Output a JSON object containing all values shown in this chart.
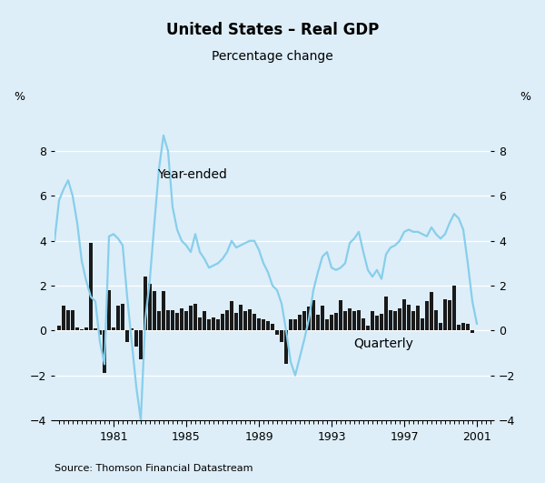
{
  "title": "United States – Real GDP",
  "subtitle": "Percentage change",
  "source": "Source: Thomson Financial Datastream",
  "ylabel_left": "%",
  "ylabel_right": "%",
  "xlabel_quarterly": "Quarterly",
  "xlabel_yearended": "Year-ended",
  "background_color": "#ddeef8",
  "bar_color": "#1a1a1a",
  "line_color": "#87CEEB",
  "ylim": [
    -4,
    10
  ],
  "yticks": [
    -4,
    -2,
    0,
    2,
    4,
    6,
    8
  ],
  "xlim_start": 1977.75,
  "xlim_end": 2001.75,
  "xtick_years": [
    1981,
    1985,
    1989,
    1993,
    1997,
    2001
  ],
  "quarterly_data": [
    [
      1978.0,
      0.2
    ],
    [
      1978.25,
      1.1
    ],
    [
      1978.5,
      0.9
    ],
    [
      1978.75,
      0.9
    ],
    [
      1979.0,
      0.15
    ],
    [
      1979.25,
      0.05
    ],
    [
      1979.5,
      0.15
    ],
    [
      1979.75,
      3.9
    ],
    [
      1980.0,
      0.1
    ],
    [
      1980.25,
      -0.2
    ],
    [
      1980.5,
      -1.9
    ],
    [
      1980.75,
      1.8
    ],
    [
      1981.0,
      0.15
    ],
    [
      1981.25,
      1.1
    ],
    [
      1981.5,
      1.2
    ],
    [
      1981.75,
      -0.5
    ],
    [
      1982.0,
      0.1
    ],
    [
      1982.25,
      -0.7
    ],
    [
      1982.5,
      -1.3
    ],
    [
      1982.75,
      2.4
    ],
    [
      1983.0,
      2.1
    ],
    [
      1983.25,
      1.75
    ],
    [
      1983.5,
      0.85
    ],
    [
      1983.75,
      1.75
    ],
    [
      1984.0,
      0.9
    ],
    [
      1984.25,
      0.9
    ],
    [
      1984.5,
      0.8
    ],
    [
      1984.75,
      1.0
    ],
    [
      1985.0,
      0.85
    ],
    [
      1985.25,
      1.1
    ],
    [
      1985.5,
      1.2
    ],
    [
      1985.75,
      0.6
    ],
    [
      1986.0,
      0.85
    ],
    [
      1986.25,
      0.5
    ],
    [
      1986.5,
      0.6
    ],
    [
      1986.75,
      0.5
    ],
    [
      1987.0,
      0.75
    ],
    [
      1987.25,
      0.9
    ],
    [
      1987.5,
      1.3
    ],
    [
      1987.75,
      0.8
    ],
    [
      1988.0,
      1.15
    ],
    [
      1988.25,
      0.85
    ],
    [
      1988.5,
      0.95
    ],
    [
      1988.75,
      0.75
    ],
    [
      1989.0,
      0.55
    ],
    [
      1989.25,
      0.5
    ],
    [
      1989.5,
      0.4
    ],
    [
      1989.75,
      0.3
    ],
    [
      1990.0,
      -0.2
    ],
    [
      1990.25,
      -0.5
    ],
    [
      1990.5,
      -1.5
    ],
    [
      1990.75,
      0.5
    ],
    [
      1991.0,
      0.5
    ],
    [
      1991.25,
      0.7
    ],
    [
      1991.5,
      0.85
    ],
    [
      1991.75,
      1.05
    ],
    [
      1992.0,
      1.35
    ],
    [
      1992.25,
      0.7
    ],
    [
      1992.5,
      1.1
    ],
    [
      1992.75,
      0.5
    ],
    [
      1993.0,
      0.7
    ],
    [
      1993.25,
      0.8
    ],
    [
      1993.5,
      1.35
    ],
    [
      1993.75,
      0.85
    ],
    [
      1994.0,
      1.0
    ],
    [
      1994.25,
      0.85
    ],
    [
      1994.5,
      0.9
    ],
    [
      1994.75,
      0.55
    ],
    [
      1995.0,
      0.2
    ],
    [
      1995.25,
      0.85
    ],
    [
      1995.5,
      0.65
    ],
    [
      1995.75,
      0.75
    ],
    [
      1996.0,
      1.5
    ],
    [
      1996.25,
      0.9
    ],
    [
      1996.5,
      0.85
    ],
    [
      1996.75,
      1.0
    ],
    [
      1997.0,
      1.4
    ],
    [
      1997.25,
      1.15
    ],
    [
      1997.5,
      0.85
    ],
    [
      1997.75,
      1.1
    ],
    [
      1998.0,
      0.55
    ],
    [
      1998.25,
      1.3
    ],
    [
      1998.5,
      1.7
    ],
    [
      1998.75,
      0.9
    ],
    [
      1999.0,
      0.35
    ],
    [
      1999.25,
      1.4
    ],
    [
      1999.5,
      1.35
    ],
    [
      1999.75,
      2.0
    ],
    [
      2000.0,
      0.25
    ],
    [
      2000.25,
      0.35
    ],
    [
      2000.5,
      0.3
    ],
    [
      2000.75,
      -0.1
    ]
  ],
  "yearended_data": [
    [
      1977.75,
      4.0
    ],
    [
      1978.0,
      5.8
    ],
    [
      1978.25,
      6.3
    ],
    [
      1978.5,
      6.7
    ],
    [
      1978.75,
      6.0
    ],
    [
      1979.0,
      4.8
    ],
    [
      1979.25,
      3.1
    ],
    [
      1979.5,
      2.2
    ],
    [
      1979.75,
      1.5
    ],
    [
      1980.0,
      1.3
    ],
    [
      1980.25,
      -0.5
    ],
    [
      1980.5,
      -1.5
    ],
    [
      1980.75,
      4.2
    ],
    [
      1981.0,
      4.3
    ],
    [
      1981.25,
      4.1
    ],
    [
      1981.5,
      3.8
    ],
    [
      1981.75,
      1.5
    ],
    [
      1982.0,
      -0.5
    ],
    [
      1982.25,
      -2.5
    ],
    [
      1982.5,
      -4.0
    ],
    [
      1982.75,
      0.5
    ],
    [
      1983.0,
      2.3
    ],
    [
      1983.25,
      4.8
    ],
    [
      1983.5,
      7.2
    ],
    [
      1983.75,
      8.7
    ],
    [
      1984.0,
      8.0
    ],
    [
      1984.25,
      5.5
    ],
    [
      1984.5,
      4.5
    ],
    [
      1984.75,
      4.0
    ],
    [
      1985.0,
      3.8
    ],
    [
      1985.25,
      3.5
    ],
    [
      1985.5,
      4.3
    ],
    [
      1985.75,
      3.5
    ],
    [
      1986.0,
      3.2
    ],
    [
      1986.25,
      2.8
    ],
    [
      1986.5,
      2.9
    ],
    [
      1986.75,
      3.0
    ],
    [
      1987.0,
      3.2
    ],
    [
      1987.25,
      3.5
    ],
    [
      1987.5,
      4.0
    ],
    [
      1987.75,
      3.7
    ],
    [
      1988.0,
      3.8
    ],
    [
      1988.25,
      3.9
    ],
    [
      1988.5,
      4.0
    ],
    [
      1988.75,
      4.0
    ],
    [
      1989.0,
      3.6
    ],
    [
      1989.25,
      3.0
    ],
    [
      1989.5,
      2.6
    ],
    [
      1989.75,
      2.0
    ],
    [
      1990.0,
      1.8
    ],
    [
      1990.25,
      1.2
    ],
    [
      1990.5,
      0.0
    ],
    [
      1990.75,
      -1.4
    ],
    [
      1991.0,
      -2.0
    ],
    [
      1991.25,
      -1.2
    ],
    [
      1991.5,
      -0.4
    ],
    [
      1991.75,
      0.5
    ],
    [
      1992.0,
      1.8
    ],
    [
      1992.25,
      2.6
    ],
    [
      1992.5,
      3.3
    ],
    [
      1992.75,
      3.5
    ],
    [
      1993.0,
      2.8
    ],
    [
      1993.25,
      2.7
    ],
    [
      1993.5,
      2.8
    ],
    [
      1993.75,
      3.0
    ],
    [
      1994.0,
      3.9
    ],
    [
      1994.25,
      4.1
    ],
    [
      1994.5,
      4.4
    ],
    [
      1994.75,
      3.5
    ],
    [
      1995.0,
      2.7
    ],
    [
      1995.25,
      2.4
    ],
    [
      1995.5,
      2.7
    ],
    [
      1995.75,
      2.3
    ],
    [
      1996.0,
      3.4
    ],
    [
      1996.25,
      3.7
    ],
    [
      1996.5,
      3.8
    ],
    [
      1996.75,
      4.0
    ],
    [
      1997.0,
      4.4
    ],
    [
      1997.25,
      4.5
    ],
    [
      1997.5,
      4.4
    ],
    [
      1997.75,
      4.4
    ],
    [
      1998.0,
      4.3
    ],
    [
      1998.25,
      4.2
    ],
    [
      1998.5,
      4.6
    ],
    [
      1998.75,
      4.3
    ],
    [
      1999.0,
      4.1
    ],
    [
      1999.25,
      4.3
    ],
    [
      1999.5,
      4.8
    ],
    [
      1999.75,
      5.2
    ],
    [
      2000.0,
      5.0
    ],
    [
      2000.25,
      4.5
    ],
    [
      2000.5,
      3.0
    ],
    [
      2000.75,
      1.3
    ],
    [
      2001.0,
      0.3
    ]
  ]
}
